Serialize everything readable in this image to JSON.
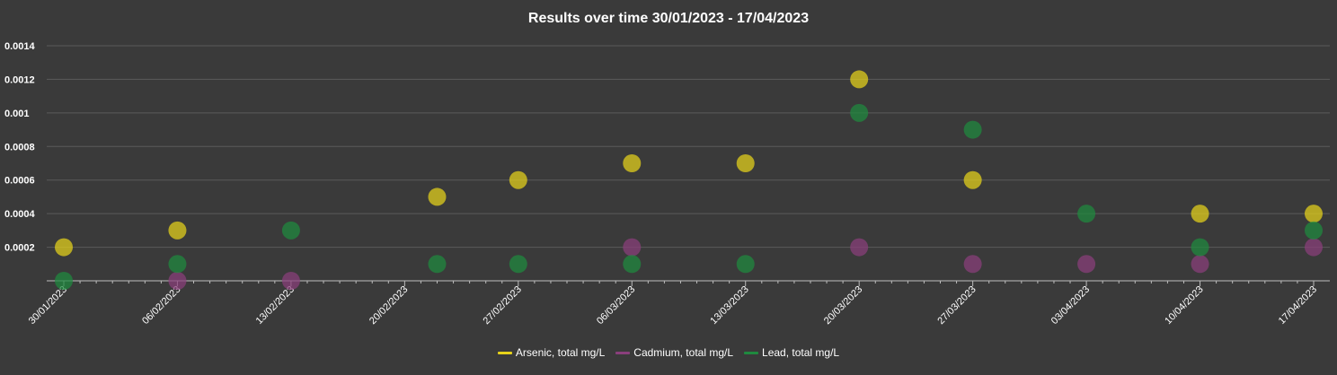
{
  "chart_data": {
    "type": "scatter",
    "title": "Results over time 30/01/2023 - 17/04/2023",
    "xlabel": "",
    "ylabel": "",
    "x_ticks": [
      "30/01/2023",
      "06/02/2023",
      "13/02/2023",
      "20/02/2023",
      "27/02/2023",
      "06/03/2023",
      "13/03/2023",
      "20/03/2023",
      "27/03/2023",
      "03/04/2023",
      "10/04/2023",
      "17/04/2023"
    ],
    "y_ticks": [
      "0.0002",
      "0.0004",
      "0.0006",
      "0.0008",
      "0.001",
      "0.0012",
      "0.0014"
    ],
    "ylim": [
      0,
      0.0014
    ],
    "xlim": [
      "2023-01-30",
      "2023-04-17"
    ],
    "grid": true,
    "legend_position": "bottom",
    "series": [
      {
        "name": "Arsenic, total mg/L",
        "color": "#e6d21a",
        "points": [
          {
            "x": "2023-01-30",
            "y": 0.0002
          },
          {
            "x": "2023-02-06",
            "y": 0.0003
          },
          {
            "x": "2023-02-22",
            "y": 0.0005
          },
          {
            "x": "2023-02-27",
            "y": 0.0006
          },
          {
            "x": "2023-03-06",
            "y": 0.0007
          },
          {
            "x": "2023-03-13",
            "y": 0.0007
          },
          {
            "x": "2023-03-20",
            "y": 0.0012
          },
          {
            "x": "2023-03-27",
            "y": 0.0006
          },
          {
            "x": "2023-04-10",
            "y": 0.0004
          },
          {
            "x": "2023-04-17",
            "y": 0.0004
          }
        ]
      },
      {
        "name": "Cadmium, total mg/L",
        "color": "#8a3f7c",
        "points": [
          {
            "x": "2023-02-06",
            "y": 0
          },
          {
            "x": "2023-02-13",
            "y": 0
          },
          {
            "x": "2023-03-06",
            "y": 0.0002
          },
          {
            "x": "2023-03-20",
            "y": 0.0002
          },
          {
            "x": "2023-03-27",
            "y": 0.0001
          },
          {
            "x": "2023-04-03",
            "y": 0.0001
          },
          {
            "x": "2023-04-10",
            "y": 0.0001
          },
          {
            "x": "2023-04-17",
            "y": 0.0002
          }
        ]
      },
      {
        "name": "Lead, total mg/L",
        "color": "#1f8a3f",
        "points": [
          {
            "x": "2023-01-30",
            "y": 0
          },
          {
            "x": "2023-02-06",
            "y": 0.0001
          },
          {
            "x": "2023-02-13",
            "y": 0.0003
          },
          {
            "x": "2023-02-22",
            "y": 0.0001
          },
          {
            "x": "2023-02-27",
            "y": 0.0001
          },
          {
            "x": "2023-03-06",
            "y": 0.0001
          },
          {
            "x": "2023-03-13",
            "y": 0.0001
          },
          {
            "x": "2023-03-20",
            "y": 0.001
          },
          {
            "x": "2023-03-27",
            "y": 0.0009
          },
          {
            "x": "2023-04-03",
            "y": 0.0004
          },
          {
            "x": "2023-04-10",
            "y": 0.0002
          },
          {
            "x": "2023-04-17",
            "y": 0.0003
          }
        ]
      }
    ]
  }
}
